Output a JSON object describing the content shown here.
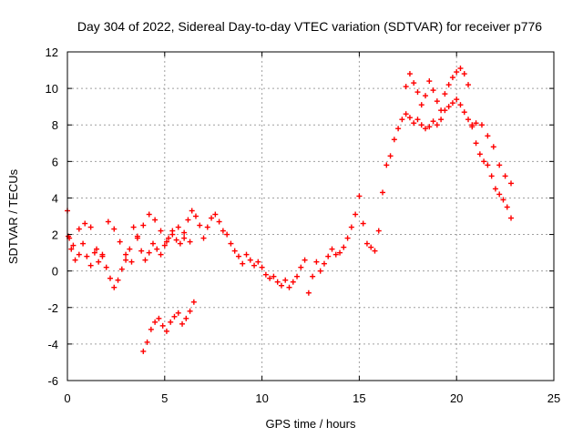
{
  "chart_data": {
    "type": "scatter",
    "title": "Day 304 of 2022, Sidereal Day-to-day VTEC variation (SDTVAR) for receiver p776",
    "xlabel": "GPS time / hours",
    "ylabel": "SDTVAR / TECUs",
    "xlim": [
      0,
      25
    ],
    "ylim": [
      -6,
      12
    ],
    "xticks": [
      "0",
      "5",
      "10",
      "15",
      "20",
      "25"
    ],
    "yticks": [
      "-6",
      "-4",
      "-2",
      "0",
      "2",
      "4",
      "6",
      "8",
      "10",
      "12"
    ],
    "grid": true,
    "marker": "plus",
    "color": "#ff0000",
    "series": [
      {
        "name": "SDTVAR",
        "x": [
          0.0,
          0.1,
          0.2,
          0.4,
          0.6,
          0.8,
          1.0,
          1.2,
          1.4,
          1.6,
          1.8,
          2.0,
          2.2,
          2.4,
          2.6,
          2.8,
          3.0,
          3.2,
          3.4,
          3.6,
          3.8,
          4.0,
          4.2,
          4.4,
          4.6,
          4.8,
          5.0,
          5.2,
          5.4,
          5.6,
          5.8,
          6.0,
          6.2,
          6.4,
          6.6,
          6.8,
          7.0,
          7.2,
          7.4,
          7.6,
          7.8,
          8.0,
          8.2,
          8.4,
          8.6,
          8.8,
          9.0,
          9.2,
          9.4,
          9.6,
          9.8,
          10.0,
          10.2,
          10.4,
          10.6,
          10.8,
          11.0,
          11.2,
          11.4,
          11.6,
          11.8,
          12.0,
          12.2,
          12.4,
          12.6,
          12.8,
          13.0,
          13.2,
          13.4,
          13.6,
          13.8,
          14.0,
          14.2,
          14.4,
          14.6,
          14.8,
          15.0,
          15.2,
          15.4,
          15.6,
          15.8,
          16.0,
          16.2,
          16.4,
          16.6,
          16.8,
          17.0,
          17.2,
          17.4,
          17.6,
          17.8,
          18.0,
          18.2,
          18.4,
          18.6,
          18.8,
          19.0,
          19.2,
          19.4,
          19.6,
          19.8,
          20.0,
          20.2,
          20.4,
          20.6,
          20.8,
          21.0,
          21.2,
          21.4,
          21.6,
          21.8,
          22.0,
          22.2,
          22.4,
          22.6,
          22.8,
          0.05,
          0.3,
          0.6,
          0.9,
          1.2,
          1.5,
          1.8,
          2.1,
          2.4,
          2.7,
          3.0,
          3.3,
          3.6,
          3.9,
          4.2,
          4.5,
          4.8,
          5.1,
          5.4,
          5.7,
          6.0,
          6.3,
          3.9,
          4.1,
          4.3,
          4.5,
          4.7,
          4.9,
          5.1,
          5.3,
          5.5,
          5.7,
          5.9,
          6.1,
          6.3,
          6.5,
          17.4,
          17.6,
          17.8,
          18.0,
          18.2,
          18.4,
          18.6,
          18.8,
          19.0,
          19.2,
          19.4,
          19.6,
          19.8,
          20.0,
          20.2,
          20.4,
          20.6,
          20.8,
          21.0,
          21.3,
          21.6,
          21.9,
          22.2,
          22.5,
          22.8
        ],
        "y": [
          3.3,
          1.8,
          1.2,
          0.6,
          0.9,
          1.5,
          0.8,
          0.3,
          1.0,
          0.5,
          0.9,
          0.2,
          -0.4,
          -0.9,
          -0.5,
          0.1,
          0.6,
          1.2,
          2.4,
          1.9,
          1.1,
          0.6,
          1.0,
          1.5,
          1.2,
          0.9,
          1.4,
          1.8,
          2.2,
          1.7,
          1.5,
          2.1,
          2.8,
          3.3,
          3.0,
          2.5,
          1.8,
          2.4,
          2.9,
          3.1,
          2.7,
          2.2,
          2.0,
          1.5,
          1.1,
          0.8,
          0.4,
          0.9,
          0.6,
          0.3,
          0.5,
          0.2,
          -0.2,
          -0.4,
          -0.3,
          -0.6,
          -0.8,
          -0.5,
          -0.9,
          -0.6,
          -0.3,
          0.2,
          0.6,
          -1.2,
          -0.3,
          0.5,
          0.0,
          0.4,
          0.8,
          1.2,
          0.9,
          1.0,
          1.3,
          1.8,
          2.4,
          3.1,
          4.1,
          2.6,
          1.5,
          1.3,
          1.1,
          2.2,
          4.3,
          5.8,
          6.3,
          7.2,
          7.8,
          8.3,
          8.6,
          8.4,
          8.1,
          8.3,
          8.0,
          7.8,
          7.9,
          8.2,
          8.0,
          8.3,
          8.8,
          9.0,
          9.2,
          9.4,
          9.1,
          8.7,
          8.3,
          7.9,
          7.0,
          6.4,
          6.0,
          5.8,
          5.2,
          4.5,
          4.2,
          3.9,
          3.5,
          2.9,
          1.9,
          1.4,
          2.3,
          2.6,
          2.4,
          1.2,
          0.8,
          2.7,
          2.3,
          1.6,
          0.9,
          0.5,
          1.8,
          2.5,
          3.1,
          2.8,
          2.2,
          1.6,
          2.0,
          2.4,
          1.8,
          1.6,
          -4.4,
          -3.9,
          -3.2,
          -2.8,
          -2.6,
          -3.0,
          -3.3,
          -2.8,
          -2.5,
          -2.3,
          -2.9,
          -2.6,
          -2.2,
          -1.7,
          10.1,
          10.8,
          10.3,
          9.8,
          9.1,
          9.6,
          10.4,
          9.9,
          9.3,
          8.8,
          9.7,
          10.2,
          10.6,
          10.9,
          11.1,
          10.8,
          10.2,
          8.0,
          8.1,
          8.0,
          7.4,
          6.8,
          5.8,
          5.2,
          4.8
        ]
      }
    ]
  }
}
